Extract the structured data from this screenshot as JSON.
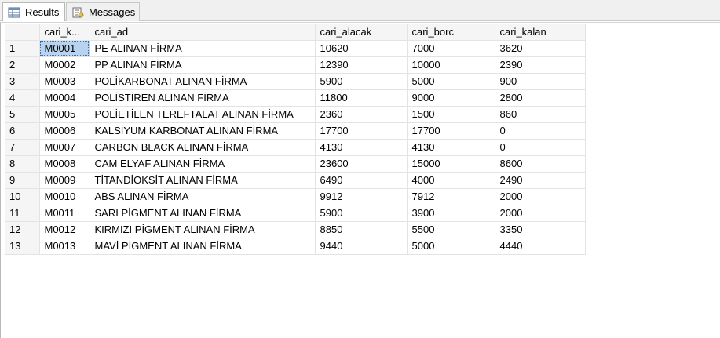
{
  "tabs": [
    {
      "label": "Results",
      "icon": "grid-icon",
      "active": true
    },
    {
      "label": "Messages",
      "icon": "messages-icon",
      "active": false
    }
  ],
  "grid": {
    "columns": [
      "cari_k...",
      "cari_ad",
      "cari_alacak",
      "cari_borc",
      "cari_kalan"
    ],
    "rows": [
      {
        "n": "1",
        "kod": "M0001",
        "ad": "PE ALINAN FİRMA",
        "alacak": "10620",
        "borc": "7000",
        "kalan": "3620"
      },
      {
        "n": "2",
        "kod": "M0002",
        "ad": "PP ALINAN FİRMA",
        "alacak": "12390",
        "borc": "10000",
        "kalan": "2390"
      },
      {
        "n": "3",
        "kod": "M0003",
        "ad": "POLİKARBONAT ALINAN FİRMA",
        "alacak": "5900",
        "borc": "5000",
        "kalan": "900"
      },
      {
        "n": "4",
        "kod": "M0004",
        "ad": "POLİSTİREN ALINAN FİRMA",
        "alacak": "11800",
        "borc": "9000",
        "kalan": "2800"
      },
      {
        "n": "5",
        "kod": "M0005",
        "ad": "POLİETİLEN TEREFTALAT ALINAN FİRMA",
        "alacak": "2360",
        "borc": "1500",
        "kalan": "860"
      },
      {
        "n": "6",
        "kod": "M0006",
        "ad": "KALSİYUM KARBONAT ALINAN FİRMA",
        "alacak": "17700",
        "borc": "17700",
        "kalan": "0"
      },
      {
        "n": "7",
        "kod": "M0007",
        "ad": "CARBON BLACK ALINAN FİRMA",
        "alacak": "4130",
        "borc": "4130",
        "kalan": "0"
      },
      {
        "n": "8",
        "kod": "M0008",
        "ad": "CAM ELYAF ALINAN FİRMA",
        "alacak": "23600",
        "borc": "15000",
        "kalan": "8600"
      },
      {
        "n": "9",
        "kod": "M0009",
        "ad": "TİTANDİOKSİT ALINAN FİRMA",
        "alacak": "6490",
        "borc": "4000",
        "kalan": "2490"
      },
      {
        "n": "10",
        "kod": "M0010",
        "ad": "ABS ALINAN FİRMA",
        "alacak": "9912",
        "borc": "7912",
        "kalan": "2000"
      },
      {
        "n": "11",
        "kod": "M0011",
        "ad": "SARI PİGMENT ALINAN FİRMA",
        "alacak": "5900",
        "borc": "3900",
        "kalan": "2000"
      },
      {
        "n": "12",
        "kod": "M0012",
        "ad": "KIRMIZI PİGMENT ALINAN FİRMA",
        "alacak": "8850",
        "borc": "5500",
        "kalan": "3350"
      },
      {
        "n": "13",
        "kod": "M0013",
        "ad": "MAVİ  PİGMENT ALINAN FİRMA",
        "alacak": "9440",
        "borc": "5000",
        "kalan": "4440"
      }
    ]
  },
  "colors": {
    "selected_cell": "#b8d3ef",
    "header_bg": "#f5f5f5",
    "tabbar_bg": "#f0f0f0"
  }
}
